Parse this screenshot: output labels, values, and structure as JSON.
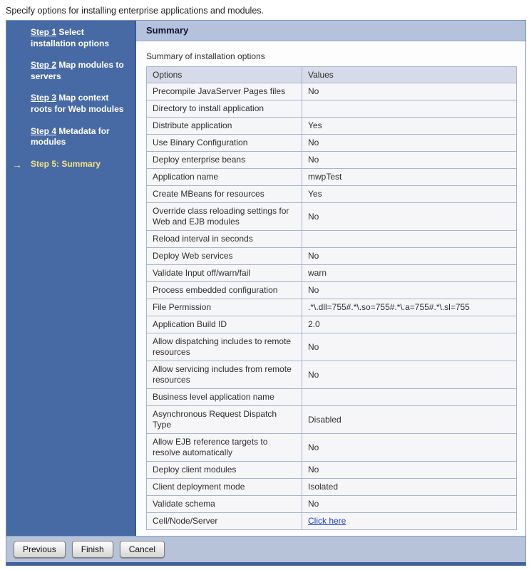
{
  "page": {
    "instruction": "Specify options for installing enterprise applications and modules."
  },
  "wizard": {
    "panel_title": "Summary",
    "table_caption": "Summary of installation options",
    "current_step_arrow": "→",
    "steps": [
      {
        "link": "Step 1",
        "rest": " Select installation options",
        "current": false
      },
      {
        "link": "Step 2",
        "rest": " Map modules to servers",
        "current": false
      },
      {
        "link": "Step 3",
        "rest": " Map context roots for Web modules",
        "current": false
      },
      {
        "link": "Step 4",
        "rest": " Metadata for modules",
        "current": false
      },
      {
        "label": "Step 5: Summary",
        "current": true
      }
    ],
    "table": {
      "headers": [
        "Options",
        "Values"
      ],
      "rows": [
        {
          "option": "Precompile JavaServer Pages files",
          "value": "No"
        },
        {
          "option": "Directory to install application",
          "value": ""
        },
        {
          "option": "Distribute application",
          "value": "Yes"
        },
        {
          "option": "Use Binary Configuration",
          "value": "No"
        },
        {
          "option": "Deploy enterprise beans",
          "value": "No"
        },
        {
          "option": "Application name",
          "value": "mwpTest"
        },
        {
          "option": "Create MBeans for resources",
          "value": "Yes"
        },
        {
          "option": "Override class reloading settings for Web and EJB modules",
          "value": "No"
        },
        {
          "option": "Reload interval in seconds",
          "value": ""
        },
        {
          "option": "Deploy Web services",
          "value": "No"
        },
        {
          "option": "Validate Input off/warn/fail",
          "value": "warn"
        },
        {
          "option": "Process embedded configuration",
          "value": "No"
        },
        {
          "option": "File Permission",
          "value": ".*\\.dll=755#.*\\.so=755#.*\\.a=755#.*\\.sl=755"
        },
        {
          "option": "Application Build ID",
          "value": "2.0"
        },
        {
          "option": "Allow dispatching includes to remote resources",
          "value": "No"
        },
        {
          "option": "Allow servicing includes from remote resources",
          "value": "No"
        },
        {
          "option": "Business level application name",
          "value": ""
        },
        {
          "option": "Asynchronous Request Dispatch Type",
          "value": "Disabled"
        },
        {
          "option": "Allow EJB reference targets to resolve automatically",
          "value": "No"
        },
        {
          "option": "Deploy client modules",
          "value": "No"
        },
        {
          "option": "Client deployment mode",
          "value": "Isolated"
        },
        {
          "option": "Validate schema",
          "value": "No"
        },
        {
          "option": "Cell/Node/Server",
          "value": "Click here",
          "is_link": true
        }
      ]
    },
    "buttons": [
      "Previous",
      "Finish",
      "Cancel"
    ],
    "colors": {
      "sidebar_background": "#4769a4",
      "current_step_yellow": "#f2e381",
      "panel_header_background": "#b4c2dc",
      "table_header_background": "#d5dbe8",
      "row_background": "#f6f6f8",
      "button_bar_background": "#b7c3d8",
      "link_blue": "#1f3fce",
      "bottom_border_blue": "#41609c"
    }
  }
}
